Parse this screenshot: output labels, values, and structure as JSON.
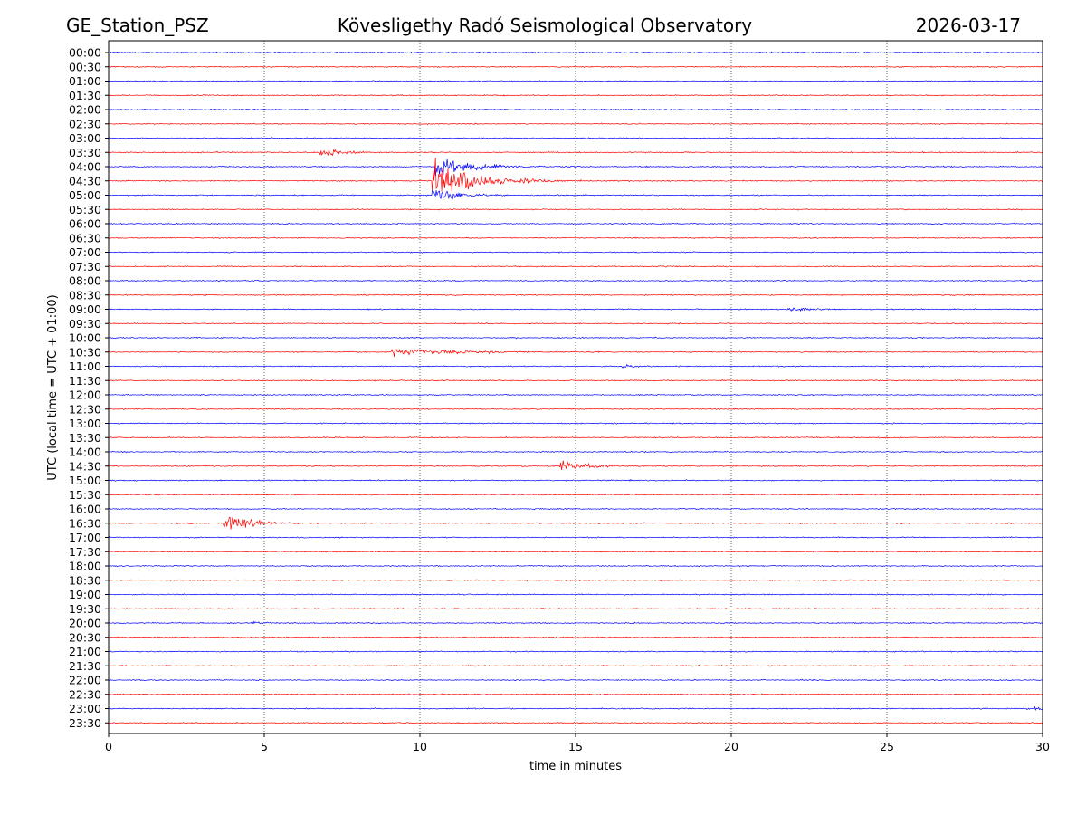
{
  "chart_data": {
    "type": "line",
    "title_left": "GE_Station_PSZ",
    "title": "Kövesligethy Radó Seismological Observatory",
    "title_right": "2026-03-17",
    "xlabel": "time in minutes",
    "ylabel": "UTC (local time = UTC + 01:00)",
    "xlim": [
      0,
      30
    ],
    "x_ticks": [
      0,
      5,
      10,
      15,
      20,
      25,
      30
    ],
    "x_tick_labels": [
      "0",
      "5",
      "10",
      "15",
      "20",
      "25",
      "30"
    ],
    "grid_x_minutes": [
      5,
      10,
      15,
      20,
      25
    ],
    "row_labels": [
      "00:00",
      "00:30",
      "01:00",
      "01:30",
      "02:00",
      "02:30",
      "03:00",
      "03:30",
      "04:00",
      "04:30",
      "05:00",
      "05:30",
      "06:00",
      "06:30",
      "07:00",
      "07:30",
      "08:00",
      "08:30",
      "09:00",
      "09:30",
      "10:00",
      "10:30",
      "11:00",
      "11:30",
      "12:00",
      "12:30",
      "13:00",
      "13:30",
      "14:00",
      "14:30",
      "15:00",
      "15:30",
      "16:00",
      "16:30",
      "17:00",
      "17:30",
      "18:00",
      "18:30",
      "19:00",
      "19:30",
      "20:00",
      "20:30",
      "21:00",
      "21:30",
      "22:00",
      "22:30",
      "23:00",
      "23:30"
    ],
    "colors": [
      "#0000ff",
      "#ff0000"
    ],
    "noise_amplitude": 0.06,
    "events": [
      {
        "row": "03:30",
        "start_min": 6.8,
        "end_min": 8.3,
        "peak_amplitude": 0.55,
        "decay": 0.9
      },
      {
        "row": "04:00",
        "start_min": 10.5,
        "end_min": 17.5,
        "peak_amplitude": 1.1,
        "decay": 1.3
      },
      {
        "row": "04:30",
        "start_min": 10.4,
        "end_min": 18.5,
        "peak_amplitude": 2.4,
        "decay": 1.4
      },
      {
        "row": "05:00",
        "start_min": 10.4,
        "end_min": 13.0,
        "peak_amplitude": 1.0,
        "decay": 0.8
      },
      {
        "row": "09:00",
        "start_min": 21.8,
        "end_min": 23.5,
        "peak_amplitude": 0.22,
        "decay": 1.2
      },
      {
        "row": "10:30",
        "start_min": 9.1,
        "end_min": 13.5,
        "peak_amplitude": 0.45,
        "decay": 2.5
      },
      {
        "row": "11:00",
        "start_min": 16.5,
        "end_min": 17.5,
        "peak_amplitude": 0.18,
        "decay": 1.0
      },
      {
        "row": "14:30",
        "start_min": 14.5,
        "end_min": 16.8,
        "peak_amplitude": 0.9,
        "decay": 0.7
      },
      {
        "row": "16:30",
        "start_min": 3.7,
        "end_min": 7.0,
        "peak_amplitude": 1.2,
        "decay": 0.8
      },
      {
        "row": "20:00",
        "start_min": 4.6,
        "end_min": 5.4,
        "peak_amplitude": 0.2,
        "decay": 0.6
      },
      {
        "row": "23:00",
        "start_min": 29.5,
        "end_min": 30.0,
        "peak_amplitude": 0.2,
        "decay": 2.0
      }
    ]
  }
}
